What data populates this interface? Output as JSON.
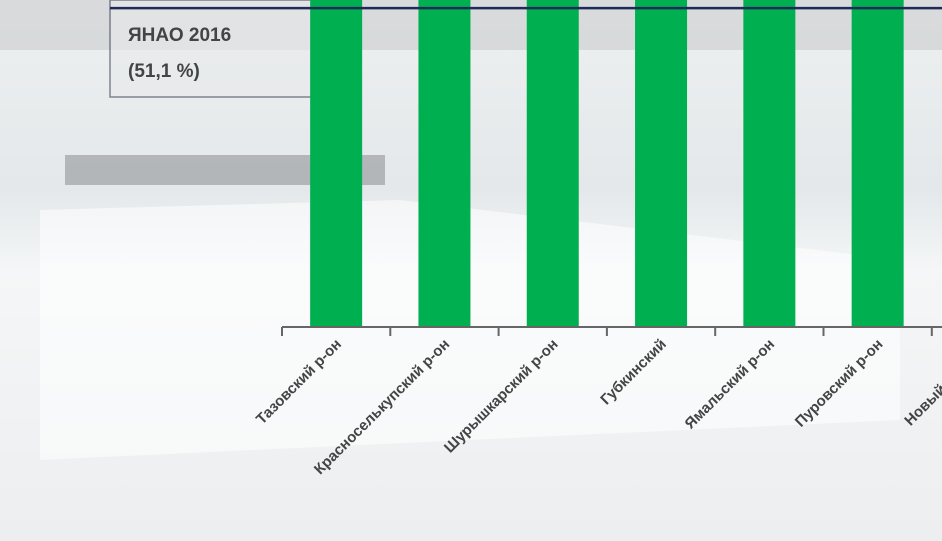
{
  "chart_data": {
    "type": "bar",
    "categories": [
      "Тазовский р-он",
      "Красноселькупский р-он",
      "Шурышкарский р-он",
      "Губкинский",
      "Ямальский р-он",
      "Пуровский р-он",
      "Новый Уренгой"
    ],
    "values": [
      60,
      60,
      60,
      60,
      60,
      60,
      60
    ],
    "color": "#00b050",
    "ylim": [
      0,
      52.4
    ],
    "reference": {
      "label": "ЯНАО 2016",
      "value_label": "(51,1 %)",
      "value": 51.1,
      "color": "#1f2a5a"
    }
  }
}
